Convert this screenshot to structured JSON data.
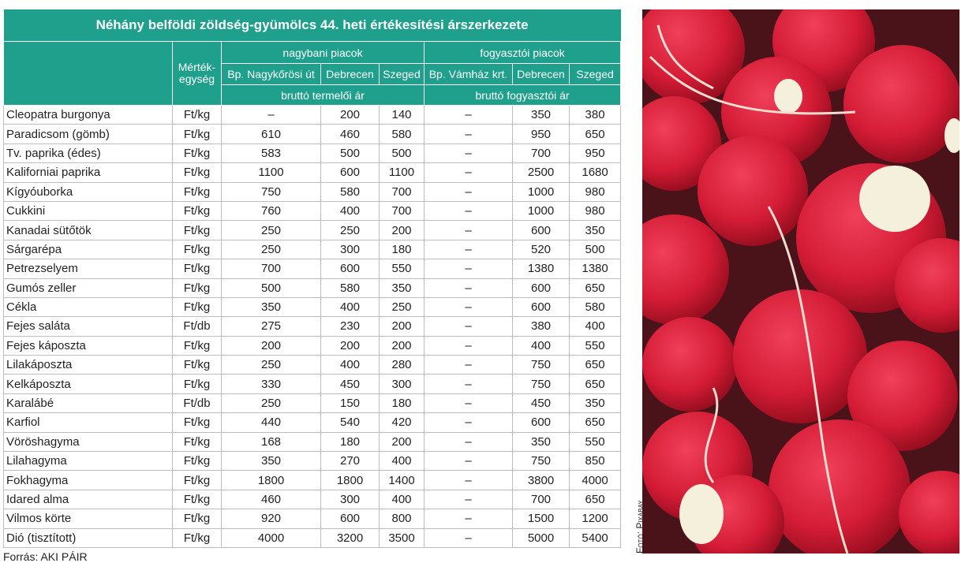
{
  "title": "Néhány belföldi zöldség-gyümölcs 44. heti értékesítési árszerkezete",
  "unit_header": "Mérték-\negység",
  "groups": [
    "nagybani piacok",
    "fogyasztói piacok"
  ],
  "subcolumns": [
    "Bp. Nagykőrösi út",
    "Debrecen",
    "Szeged",
    "Bp. Vámház krt.",
    "Debrecen",
    "Szeged"
  ],
  "price_types": [
    "bruttó termelői ár",
    "bruttó fogyasztói ár"
  ],
  "rows": [
    [
      "Cleopatra burgonya",
      "Ft/kg",
      "–",
      200,
      140,
      "–",
      350,
      380
    ],
    [
      "Paradicsom (gömb)",
      "Ft/kg",
      610,
      460,
      580,
      "–",
      950,
      650
    ],
    [
      "Tv. paprika (édes)",
      "Ft/kg",
      583,
      500,
      500,
      "–",
      700,
      950
    ],
    [
      "Kaliforniai paprika",
      "Ft/kg",
      1100,
      600,
      1100,
      "–",
      2500,
      1680
    ],
    [
      "Kígyóuborka",
      "Ft/kg",
      750,
      580,
      700,
      "–",
      1000,
      980
    ],
    [
      "Cukkini",
      "Ft/kg",
      760,
      400,
      700,
      "–",
      1000,
      980
    ],
    [
      "Kanadai sütőtök",
      "Ft/kg",
      250,
      250,
      200,
      "–",
      600,
      350
    ],
    [
      "Sárgarépa",
      "Ft/kg",
      250,
      300,
      180,
      "–",
      520,
      500
    ],
    [
      "Petrezselyem",
      "Ft/kg",
      700,
      600,
      550,
      "–",
      1380,
      1380
    ],
    [
      "Gumós zeller",
      "Ft/kg",
      500,
      580,
      350,
      "–",
      600,
      650
    ],
    [
      "Cékla",
      "Ft/kg",
      350,
      400,
      250,
      "–",
      600,
      580
    ],
    [
      "Fejes saláta",
      "Ft/db",
      275,
      230,
      200,
      "–",
      380,
      400
    ],
    [
      "Fejes káposzta",
      "Ft/kg",
      200,
      200,
      200,
      "–",
      400,
      550
    ],
    [
      "Lilakáposzta",
      "Ft/kg",
      250,
      400,
      280,
      "–",
      750,
      650
    ],
    [
      "Kelkáposzta",
      "Ft/kg",
      330,
      450,
      300,
      "–",
      750,
      650
    ],
    [
      "Karalábé",
      "Ft/db",
      250,
      150,
      180,
      "–",
      450,
      350
    ],
    [
      "Karfiol",
      "Ft/kg",
      440,
      540,
      420,
      "–",
      600,
      650
    ],
    [
      "Vöröshagyma",
      "Ft/kg",
      168,
      180,
      200,
      "–",
      350,
      550
    ],
    [
      "Lilahagyma",
      "Ft/kg",
      350,
      270,
      400,
      "–",
      750,
      850
    ],
    [
      "Fokhagyma",
      "Ft/kg",
      1800,
      1800,
      1400,
      "–",
      3800,
      4000
    ],
    [
      "Idared alma",
      "Ft/kg",
      460,
      300,
      400,
      "–",
      700,
      650
    ],
    [
      "Vilmos körte",
      "Ft/kg",
      920,
      600,
      800,
      "–",
      1500,
      1200
    ],
    [
      "Dió (tisztított)",
      "Ft/kg",
      4000,
      3200,
      3500,
      "–",
      5000,
      5400
    ]
  ],
  "source": "Forrás: AKI PÁIR",
  "photo_credit": "Fotó: Pixabay"
}
